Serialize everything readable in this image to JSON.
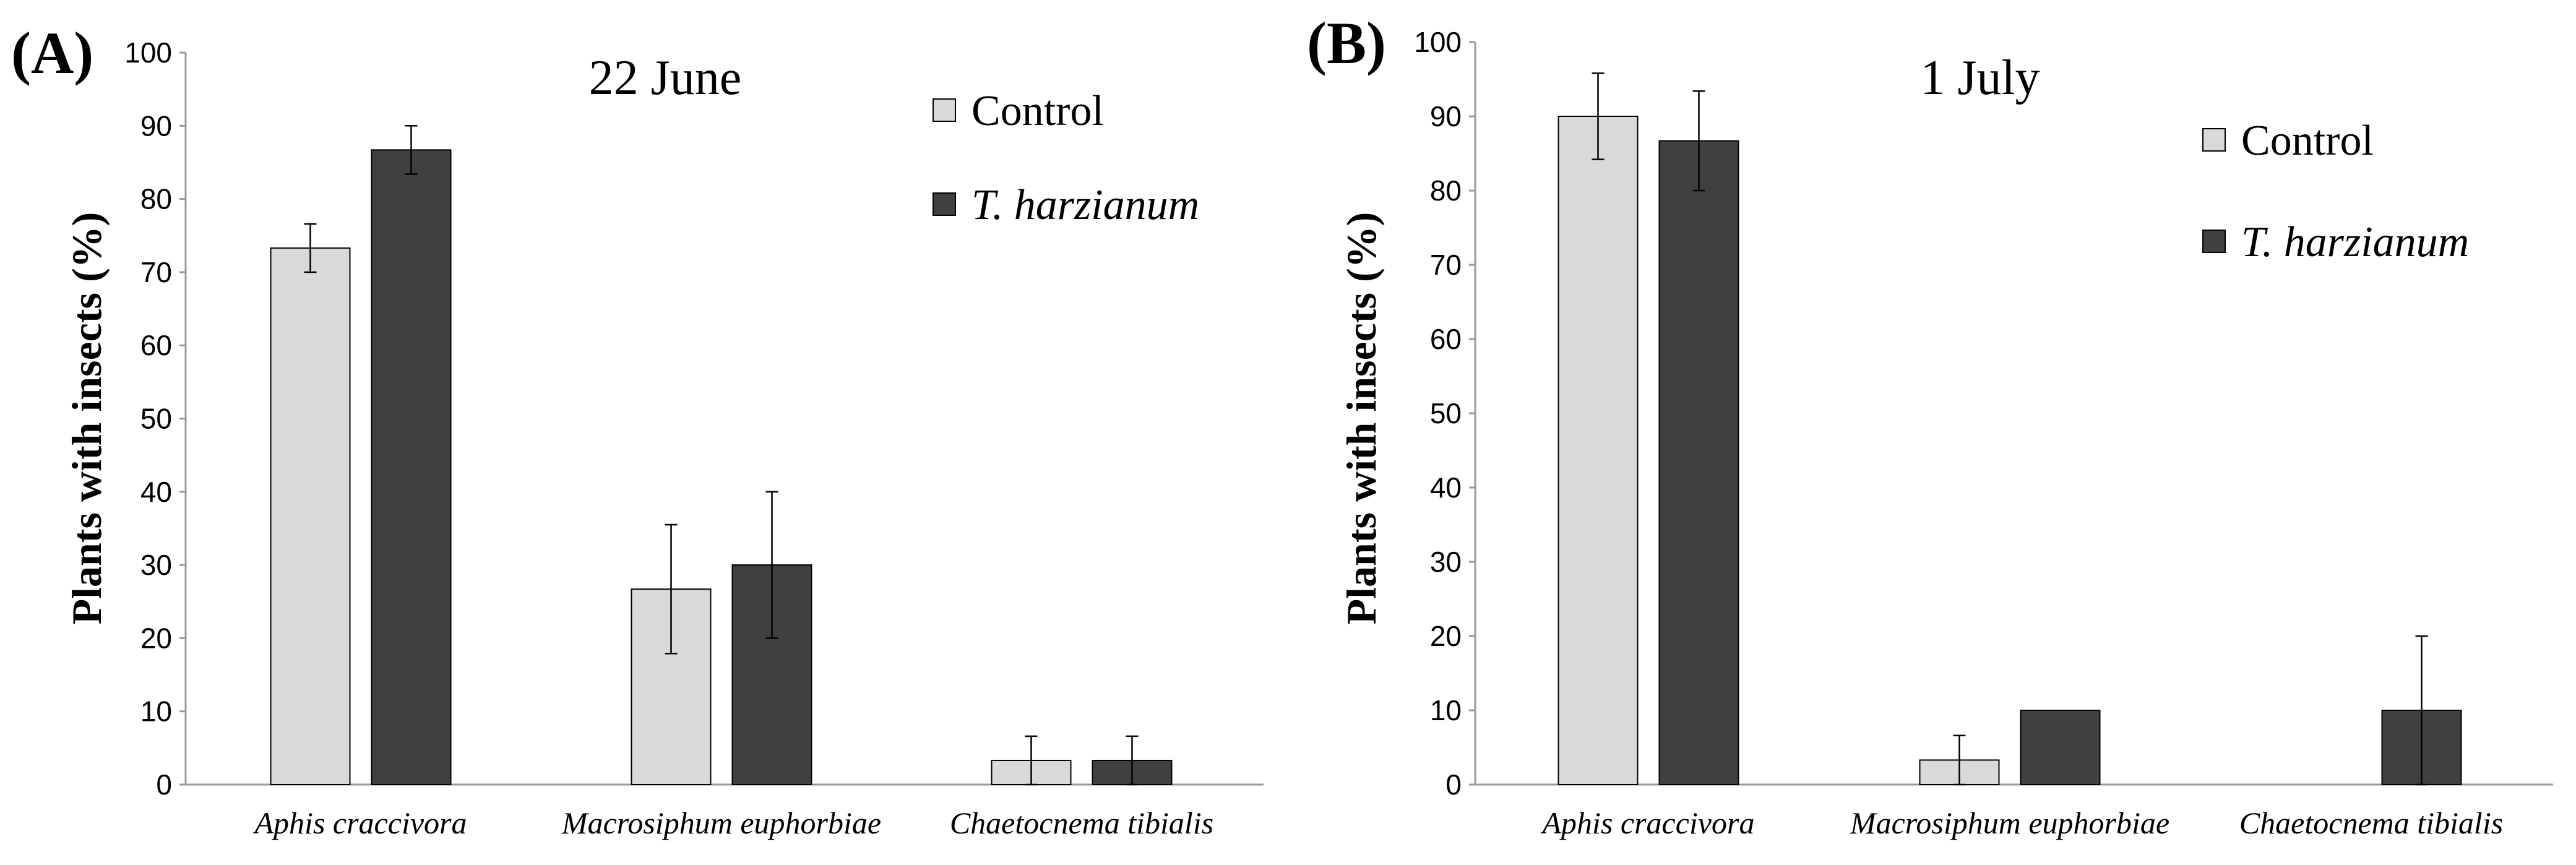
{
  "colors": {
    "control": "#d9d9d9",
    "t_harzianum": "#404040",
    "axis": "#9a9a9a",
    "text": "#000000"
  },
  "chart_data": [
    {
      "type": "bar",
      "panel_label": "(A)",
      "title": "22 June",
      "ylabel": "Plants with insects (%)",
      "xlabel": "",
      "ylim": [
        0,
        100
      ],
      "yticks": [
        0,
        10,
        20,
        30,
        40,
        50,
        60,
        70,
        80,
        90,
        100
      ],
      "categories": [
        "Aphis craccivora",
        "Macrosiphum euphorbiae",
        "Chaetocnema tibialis"
      ],
      "series": [
        {
          "name": "Control",
          "color": "#d9d9d9",
          "values": [
            73.3,
            26.7,
            3.3
          ],
          "errors": [
            3.3,
            8.8,
            3.3
          ]
        },
        {
          "name": "T. harzianum",
          "color": "#404040",
          "values": [
            86.7,
            30.0,
            3.3
          ],
          "errors": [
            3.3,
            10.0,
            3.3
          ]
        }
      ],
      "legend_position": "top-right"
    },
    {
      "type": "bar",
      "panel_label": "(B)",
      "title": "1 July",
      "ylabel": "Plants with insects (%)",
      "xlabel": "",
      "ylim": [
        0,
        100
      ],
      "yticks": [
        0,
        10,
        20,
        30,
        40,
        50,
        60,
        70,
        80,
        90,
        100
      ],
      "categories": [
        "Aphis craccivora",
        "Macrosiphum euphorbiae",
        "Chaetocnema tibialis"
      ],
      "series": [
        {
          "name": "Control",
          "color": "#d9d9d9",
          "values": [
            90.0,
            3.3,
            0.0
          ],
          "errors": [
            5.8,
            3.3,
            0.0
          ]
        },
        {
          "name": "T. harzianum",
          "color": "#404040",
          "values": [
            86.7,
            10.0,
            10.0
          ],
          "errors": [
            6.7,
            0.0,
            10.0
          ]
        }
      ],
      "legend_position": "top-right"
    }
  ]
}
